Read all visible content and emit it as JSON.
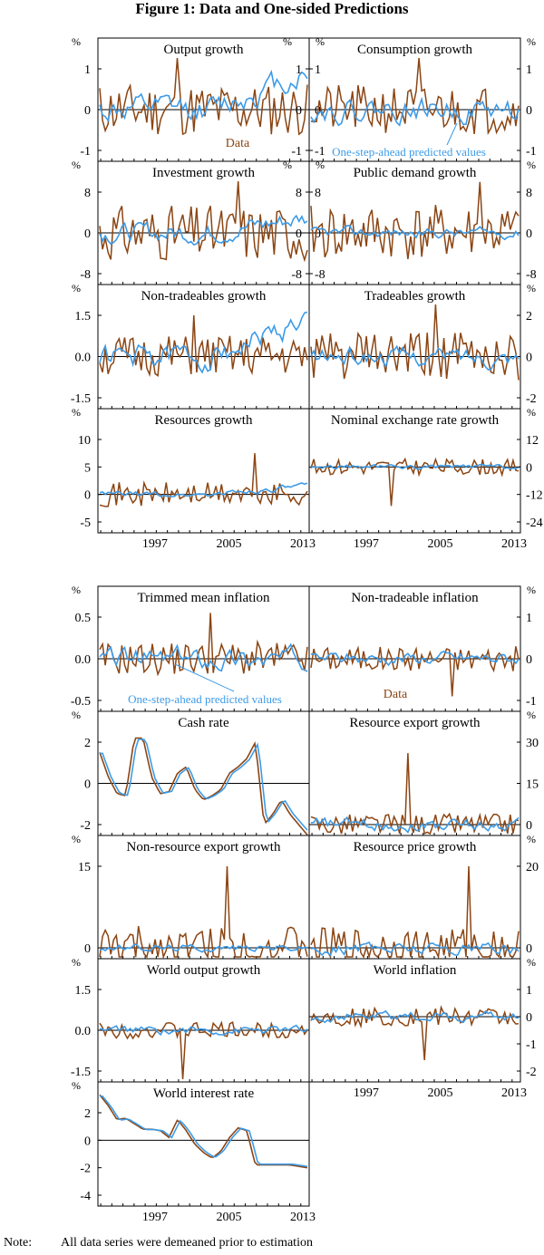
{
  "title": "Figure 1: Data and One-sided Predictions",
  "note_label": "Note:",
  "note_text": "All data series were demeaned prior to estimation",
  "unit_label": "%",
  "colors": {
    "data": "#8B4513",
    "predicted": "#3C9BE8",
    "axis": "#000000"
  },
  "chart_data": [
    {
      "type": "line",
      "title": "Output growth",
      "yticks": [
        "1",
        "0",
        "-1"
      ],
      "yticks_side": "both",
      "series": [
        {
          "name": "Data",
          "seed": 11,
          "amp": 0.65,
          "spike": 1.75
        },
        {
          "name": "One-step-ahead predicted values",
          "seed": 12,
          "amp": 0.25,
          "trend": 0.9
        }
      ],
      "annotations": [
        {
          "text": "Data",
          "color": "data"
        }
      ]
    },
    {
      "type": "line",
      "title": "Consumption growth",
      "yticks": [
        "1",
        "0",
        "-1"
      ],
      "yticks_side": "both",
      "series": [
        {
          "name": "Data",
          "seed": 21,
          "amp": 0.6,
          "spike": 1.3
        },
        {
          "name": "One-step-ahead predicted values",
          "seed": 22,
          "amp": 0.22
        }
      ],
      "annotations": [
        {
          "text": "One-step-ahead predicted values",
          "color": "predicted"
        }
      ]
    },
    {
      "type": "line",
      "title": "Investment growth",
      "yticks": [
        "8",
        "0",
        "-8"
      ],
      "yticks_side": "both",
      "series": [
        {
          "name": "Data",
          "seed": 31,
          "amp": 5.5,
          "spike": 11
        },
        {
          "name": "One-step-ahead predicted values",
          "seed": 32,
          "amp": 1.5,
          "trend": 3
        }
      ]
    },
    {
      "type": "line",
      "title": "Public demand growth",
      "yticks": [
        "8",
        "0",
        "-8"
      ],
      "yticks_side": "both",
      "series": [
        {
          "name": "Data",
          "seed": 41,
          "amp": 5.5,
          "spike": 10
        },
        {
          "name": "One-step-ahead predicted values",
          "seed": 42,
          "amp": 0.8
        }
      ]
    },
    {
      "type": "line",
      "title": "Non-tradeables growth",
      "yticks": [
        "1.5",
        "0.0",
        "-1.5"
      ],
      "yticks_side": "left",
      "series": [
        {
          "name": "Data",
          "seed": 51,
          "amp": 0.75,
          "spike": 1.5
        },
        {
          "name": "One-step-ahead predicted values",
          "seed": 52,
          "amp": 0.35,
          "trend": 1.3
        }
      ]
    },
    {
      "type": "line",
      "title": "Tradeables growth",
      "yticks": [
        "2",
        "0",
        "-2"
      ],
      "yticks_side": "right",
      "series": [
        {
          "name": "Data",
          "seed": 61,
          "amp": 1.2,
          "spike": 2.6
        },
        {
          "name": "One-step-ahead predicted values",
          "seed": 62,
          "amp": 0.35
        }
      ]
    },
    {
      "type": "line",
      "title": "Resources growth",
      "yticks": [
        "10",
        "5",
        "0",
        "-5"
      ],
      "yticks_side": "left",
      "xticks": [
        "1997",
        "2005",
        "2013"
      ],
      "series": [
        {
          "name": "Data",
          "seed": 71,
          "amp": 2.2,
          "spike": 7.5
        },
        {
          "name": "One-step-ahead predicted values",
          "seed": 72,
          "amp": 0.4,
          "trend": 1.5
        }
      ]
    },
    {
      "type": "line",
      "title": "Nominal exchange rate growth",
      "yticks": [
        "12",
        "0",
        "-12",
        "-24"
      ],
      "yticks_side": "right",
      "xticks": [
        "1997",
        "2005",
        "2013"
      ],
      "series": [
        {
          "name": "Data",
          "seed": 81,
          "amp": 3.5,
          "spike": -17
        },
        {
          "name": "One-step-ahead predicted values",
          "seed": 82,
          "amp": 0.8
        }
      ]
    },
    {
      "type": "line",
      "title": "Trimmed mean inflation",
      "yticks": [
        "0.5",
        "0.0",
        "-0.5"
      ],
      "yticks_side": "left",
      "series": [
        {
          "name": "Data",
          "seed": 91,
          "amp": 0.2,
          "spike": 0.55
        },
        {
          "name": "One-step-ahead predicted values",
          "seed": 92,
          "amp": 0.1
        }
      ],
      "annotations": [
        {
          "text": "One-step-ahead predicted values",
          "color": "predicted"
        }
      ]
    },
    {
      "type": "line",
      "title": "Non-tradeable inflation",
      "yticks": [
        "1",
        "0",
        "-1"
      ],
      "yticks_side": "right",
      "series": [
        {
          "name": "Data",
          "seed": 101,
          "amp": 0.3,
          "spike": -0.9
        },
        {
          "name": "One-step-ahead predicted values",
          "seed": 102,
          "amp": 0.12
        }
      ],
      "annotations": [
        {
          "text": "Data",
          "color": "data"
        }
      ]
    },
    {
      "type": "line",
      "title": "Cash rate",
      "yticks": [
        "2",
        "0",
        "-2"
      ],
      "yticks_side": "left",
      "smooth": true,
      "series": [
        {
          "name": "Data"
        },
        {
          "name": "One-step-ahead predicted values"
        }
      ],
      "shape": [
        1.5,
        0.3,
        -0.5,
        -0.6,
        2.2,
        2.2,
        0.3,
        -0.5,
        -0.4,
        0.5,
        0.8,
        -0.3,
        -0.8,
        -0.6,
        -0.3,
        0.5,
        0.8,
        1.2,
        2.0,
        -2.0,
        -1.5,
        -0.8,
        -1.5,
        -2.0,
        -2.5
      ]
    },
    {
      "type": "line",
      "title": "Resource export growth",
      "yticks": [
        "30",
        "15",
        "0"
      ],
      "yticks_side": "right",
      "series": [
        {
          "name": "Data",
          "seed": 121,
          "amp": 4,
          "spike": 26
        },
        {
          "name": "One-step-ahead predicted values",
          "seed": 122,
          "amp": 1.8
        }
      ]
    },
    {
      "type": "line",
      "title": "Non-resource export growth",
      "yticks": [
        "15",
        "0"
      ],
      "yticks_side": "left",
      "series": [
        {
          "name": "Data",
          "seed": 131,
          "amp": 4,
          "spike": 15
        },
        {
          "name": "One-step-ahead predicted values",
          "seed": 132,
          "amp": 0.5
        }
      ]
    },
    {
      "type": "line",
      "title": "Resource price growth",
      "yticks": [
        "20",
        "0"
      ],
      "yticks_side": "right",
      "series": [
        {
          "name": "Data",
          "seed": 141,
          "amp": 5,
          "spike": 20
        },
        {
          "name": "One-step-ahead predicted values",
          "seed": 142,
          "amp": 1.2
        }
      ]
    },
    {
      "type": "line",
      "title": "World output growth",
      "yticks": [
        "1.5",
        "0.0",
        "-1.5"
      ],
      "yticks_side": "left",
      "series": [
        {
          "name": "Data",
          "seed": 151,
          "amp": 0.3,
          "spike": -1.8
        },
        {
          "name": "One-step-ahead predicted values",
          "seed": 152,
          "amp": 0.12
        }
      ]
    },
    {
      "type": "line",
      "title": "World inflation",
      "yticks": [
        "1",
        "0",
        "-1",
        "-2"
      ],
      "yticks_side": "right",
      "xticks": [
        "1997",
        "2005",
        "2013"
      ],
      "series": [
        {
          "name": "Data",
          "seed": 161,
          "amp": 0.35,
          "spike": -1.6
        },
        {
          "name": "One-step-ahead predicted values",
          "seed": 162,
          "amp": 0.15
        }
      ]
    },
    {
      "type": "line",
      "title": "World interest rate",
      "yticks": [
        "2",
        "0",
        "-2",
        "-4"
      ],
      "yticks_side": "left",
      "smooth": true,
      "xticks": [
        "1997",
        "2005",
        "2013"
      ],
      "series": [
        {
          "name": "Data"
        },
        {
          "name": "One-step-ahead predicted values"
        }
      ],
      "shape": [
        3.3,
        2.5,
        1.5,
        1.6,
        1.2,
        0.8,
        0.8,
        0.7,
        0.2,
        1.5,
        0.7,
        -0.3,
        -0.9,
        -1.3,
        -0.8,
        0.2,
        0.9,
        0.7,
        -1.8,
        -1.8,
        -1.8,
        -1.8,
        -1.8,
        -1.9,
        -2.0
      ]
    }
  ]
}
